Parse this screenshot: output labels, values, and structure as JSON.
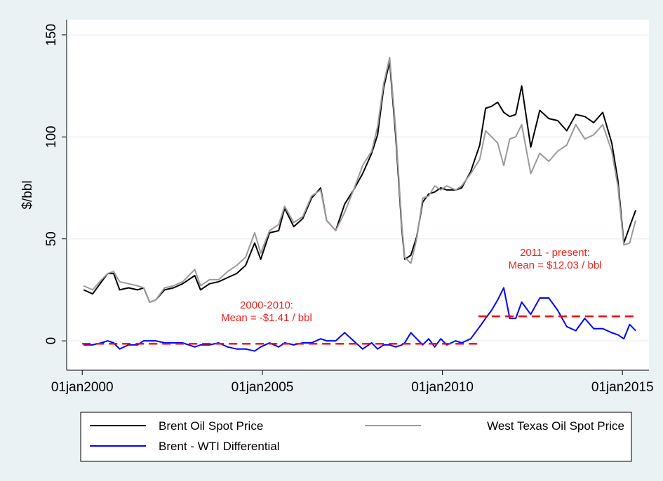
{
  "chart_data": {
    "type": "line",
    "y_label": "$/bbl",
    "x": [
      "2000-01",
      "2000-04",
      "2000-07",
      "2000-09",
      "2000-11",
      "2001-01",
      "2001-04",
      "2001-07",
      "2001-09",
      "2001-11",
      "2002-01",
      "2002-04",
      "2002-07",
      "2002-10",
      "2003-02",
      "2003-04",
      "2003-07",
      "2003-10",
      "2004-01",
      "2004-04",
      "2004-07",
      "2004-10",
      "2004-12",
      "2005-03",
      "2005-06",
      "2005-08",
      "2005-11",
      "2006-02",
      "2006-05",
      "2006-08",
      "2006-10",
      "2007-01",
      "2007-04",
      "2007-07",
      "2007-10",
      "2008-01",
      "2008-03",
      "2008-05",
      "2008-07",
      "2008-09",
      "2008-11",
      "2008-12",
      "2009-02",
      "2009-04",
      "2009-06",
      "2009-08",
      "2009-10",
      "2009-12",
      "2010-02",
      "2010-05",
      "2010-07",
      "2010-10",
      "2011-01",
      "2011-03",
      "2011-05",
      "2011-07",
      "2011-09",
      "2011-11",
      "2012-01",
      "2012-03",
      "2012-06",
      "2012-09",
      "2012-12",
      "2013-03",
      "2013-06",
      "2013-09",
      "2013-12",
      "2014-03",
      "2014-06",
      "2014-09",
      "2014-11",
      "2015-01",
      "2015-03",
      "2015-05"
    ],
    "series": [
      {
        "name": "Brent Oil Spot Price",
        "color": "#000000",
        "values": [
          25,
          23,
          29,
          33,
          33,
          25,
          26,
          25,
          26,
          19,
          20,
          25,
          26,
          28,
          32,
          25,
          28,
          29,
          31,
          33,
          37,
          48,
          40,
          53,
          54,
          65,
          56,
          60,
          70,
          75,
          59,
          54,
          67,
          74,
          82,
          92,
          101,
          124,
          137,
          100,
          55,
          40,
          42,
          51,
          68,
          72,
          73,
          75,
          74,
          74,
          75,
          83,
          96,
          114,
          115,
          117,
          112,
          110,
          111,
          125,
          95,
          113,
          109,
          108,
          103,
          111,
          110,
          107,
          112,
          97,
          79,
          48,
          56,
          64
        ]
      },
      {
        "name": "West Texas Oil Spot Price",
        "color": "#9a9a9a",
        "values": [
          27,
          25,
          30,
          33,
          34,
          29,
          28,
          27,
          26,
          19,
          20,
          26,
          27,
          29,
          35,
          27,
          30,
          30,
          34,
          37,
          41,
          53,
          43,
          54,
          57,
          66,
          58,
          61,
          71,
          74,
          59,
          54,
          63,
          74,
          86,
          93,
          105,
          126,
          139,
          103,
          57,
          41,
          38,
          50,
          70,
          71,
          76,
          74,
          76,
          74,
          76,
          82,
          89,
          103,
          100,
          97,
          86,
          99,
          100,
          106,
          82,
          92,
          88,
          93,
          96,
          106,
          99,
          101,
          106,
          93,
          76,
          47,
          48,
          59
        ]
      },
      {
        "name": "Brent - WTI Differential",
        "color": "#0000ff",
        "values": [
          -2,
          -2,
          -1,
          0,
          -1,
          -4,
          -2,
          -2,
          0,
          0,
          0,
          -1,
          -1,
          -1,
          -3,
          -2,
          -2,
          -1,
          -3,
          -4,
          -4,
          -5,
          -3,
          -1,
          -3,
          -1,
          -2,
          -1,
          -1,
          1,
          0,
          0,
          4,
          0,
          -4,
          -1,
          -4,
          -2,
          -2,
          -3,
          -2,
          -1,
          4,
          1,
          -2,
          1,
          -3,
          1,
          -2,
          0,
          -1,
          1,
          7,
          11,
          15,
          20,
          26,
          11,
          11,
          19,
          13,
          21,
          21,
          15,
          7,
          5,
          11,
          6,
          6,
          4,
          3,
          1,
          8,
          5
        ]
      }
    ],
    "reference_lines": [
      {
        "value": -1.41,
        "x": [
          "2000-01-01",
          "2010-12-31"
        ],
        "color": "#ff0000",
        "label": [
          "2000-2010:",
          "Mean = -$1.41 / bbl"
        ]
      },
      {
        "value": 12.03,
        "x": [
          "2011-01-01",
          "2015-05-01"
        ],
        "color": "#ff0000",
        "label": [
          "2011 - present:",
          "Mean = $12.03 / bbl"
        ]
      }
    ],
    "xlim": [
      "1999-07-27",
      "2015-09-27"
    ],
    "xticks": [
      {
        "value": "2000-01-01",
        "label": "01jan2000"
      },
      {
        "value": "2005-01-01",
        "label": "01jan2005"
      },
      {
        "value": "2010-01-01",
        "label": "01jan2010"
      },
      {
        "value": "2015-01-01",
        "label": "01jan2015"
      }
    ],
    "ylim": [
      -14.4,
      157.5
    ],
    "yticks": [
      0,
      50,
      100,
      150
    ],
    "grid": true
  }
}
